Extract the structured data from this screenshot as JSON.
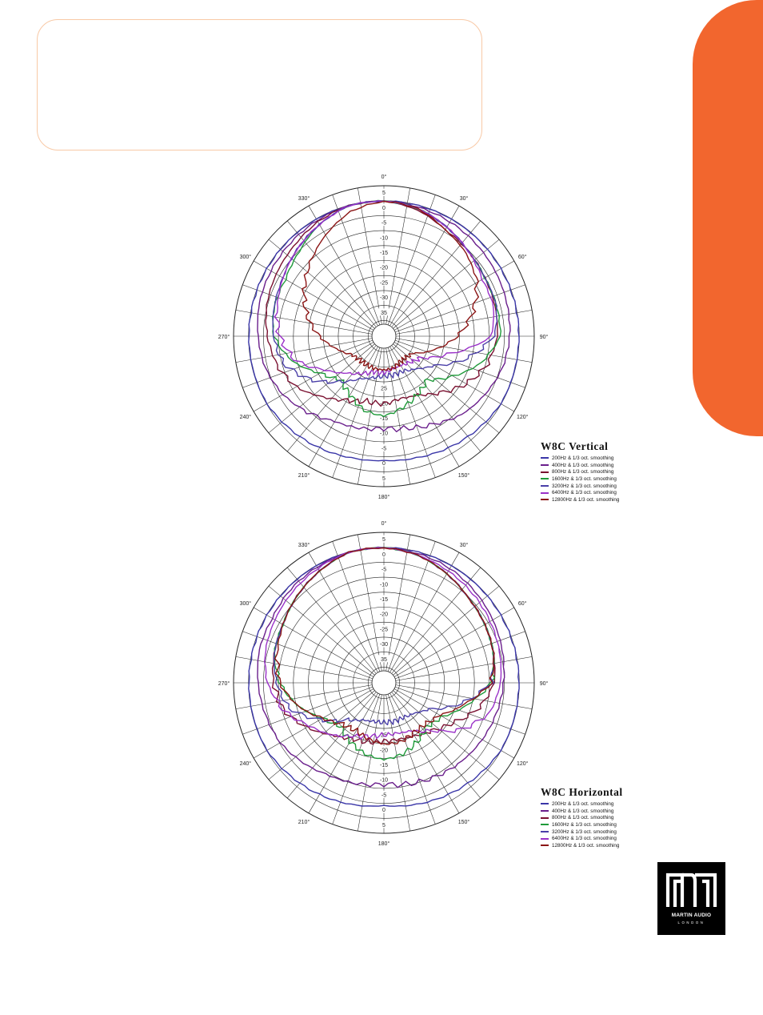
{
  "page": {
    "accent_color": "#f2662e",
    "box_border_color": "#f8c9a6"
  },
  "chart_data": [
    {
      "type": "polar-line",
      "title": "W8C Vertical",
      "angle_labels": [
        "0°",
        "30°",
        "60°",
        "90°",
        "120°",
        "150°",
        "180°",
        "210°",
        "240°",
        "270°",
        "300°",
        "330°"
      ],
      "radial_ticks": [
        "5",
        "0",
        "-5",
        "-10",
        "-15",
        "-20",
        "-25",
        "-30",
        "35"
      ],
      "lower_ticks": [
        "5",
        "0",
        "-5",
        "-10",
        "-15",
        "-20",
        "25"
      ],
      "rlim": [
        -40,
        5
      ],
      "grid": true,
      "legend_position": "bottom-right",
      "series": [
        {
          "name": "200Hz & 1/3 oct. smoothing",
          "color": "#3a36a8",
          "angles": [
            0,
            15,
            30,
            45,
            60,
            75,
            90,
            105,
            120,
            135,
            150,
            165,
            180,
            195,
            210,
            225,
            240,
            255,
            270,
            285,
            300,
            315,
            330,
            345
          ],
          "values": [
            0,
            0,
            0,
            0,
            0,
            0,
            0,
            0,
            0,
            -1,
            -2,
            -3,
            -3.5,
            -3,
            -2,
            -1,
            0,
            0,
            0,
            0,
            0,
            0,
            0,
            0
          ]
        },
        {
          "name": "400Hz & 1/3 oct. smoothing",
          "color": "#6a1f8c",
          "angles": [
            0,
            15,
            30,
            45,
            60,
            75,
            90,
            105,
            120,
            135,
            150,
            165,
            180,
            195,
            210,
            225,
            240,
            255,
            270,
            285,
            300,
            315,
            330,
            345
          ],
          "values": [
            0,
            -0.5,
            -1,
            -1.5,
            -2,
            -2.5,
            -3,
            -4,
            -6,
            -8,
            -11,
            -13,
            -14,
            -13,
            -12,
            -9,
            -6,
            -4,
            -3,
            -2,
            -1.5,
            -1,
            -0.5,
            0
          ]
        },
        {
          "name": "800Hz & 1/3 oct. smoothing",
          "color": "#7a1030",
          "angles": [
            0,
            15,
            30,
            45,
            60,
            75,
            90,
            105,
            120,
            135,
            150,
            165,
            180,
            195,
            210,
            225,
            240,
            255,
            270,
            285,
            300,
            315,
            330,
            345
          ],
          "values": [
            0,
            -1.5,
            -4,
            -5,
            -6,
            -6.5,
            -7,
            -9,
            -13,
            -18,
            -22,
            -23,
            -22,
            -22,
            -20,
            -16,
            -11,
            -8,
            -6,
            -4.5,
            -3.5,
            -2.5,
            -1,
            0
          ]
        },
        {
          "name": "1600Hz & 1/3 oct. smoothing",
          "color": "#1f9a3a",
          "angles": [
            0,
            15,
            30,
            45,
            60,
            75,
            90,
            105,
            120,
            135,
            150,
            165,
            180,
            195,
            210,
            225,
            240,
            255,
            270,
            285,
            300,
            315,
            330,
            345
          ],
          "values": [
            0,
            -1,
            -3,
            -5,
            -6,
            -6,
            -6,
            -11,
            -18,
            -24,
            -22,
            -20,
            -18,
            -19,
            -22,
            -24,
            -20,
            -13,
            -8,
            -7,
            -7,
            -5,
            -2,
            0
          ]
        },
        {
          "name": "3200Hz & 1/3 oct. smoothing",
          "color": "#4a3fa8",
          "angles": [
            0,
            15,
            30,
            45,
            60,
            75,
            90,
            105,
            120,
            135,
            150,
            165,
            180,
            195,
            210,
            225,
            240,
            255,
            270,
            285,
            300,
            315,
            330,
            345
          ],
          "values": [
            0,
            -1,
            -3,
            -5,
            -6,
            -6,
            -8,
            -16,
            -25,
            -29,
            -31,
            -31,
            -31,
            -30,
            -28,
            -23,
            -16,
            -10,
            -8,
            -7,
            -6,
            -4,
            -2,
            0
          ]
        },
        {
          "name": "6400Hz & 1/3 oct. smoothing",
          "color": "#9a32c8",
          "angles": [
            0,
            15,
            30,
            45,
            60,
            75,
            90,
            105,
            120,
            135,
            150,
            165,
            180,
            195,
            210,
            225,
            240,
            255,
            270,
            285,
            300,
            315,
            330,
            345
          ],
          "values": [
            0,
            -1,
            -3,
            -5,
            -7,
            -7,
            -9,
            -22,
            -30,
            -32,
            -33,
            -33,
            -32,
            -32,
            -30,
            -27,
            -22,
            -14,
            -10,
            -8,
            -6,
            -4,
            -2,
            0
          ]
        },
        {
          "name": "12800Hz & 1/3 oct. smoothing",
          "color": "#8b1515",
          "angles": [
            0,
            15,
            30,
            45,
            60,
            75,
            90,
            105,
            120,
            135,
            150,
            165,
            180,
            195,
            210,
            225,
            240,
            255,
            270,
            285,
            300,
            315,
            330,
            345
          ],
          "values": [
            0,
            -1,
            -4,
            -6,
            -9,
            -14,
            -20,
            -27,
            -33,
            -34,
            -34,
            -33,
            -33,
            -33,
            -33,
            -33,
            -32,
            -28,
            -23,
            -18,
            -14,
            -10,
            -6,
            -2
          ]
        }
      ]
    },
    {
      "type": "polar-line",
      "title": "W8C Horizontal",
      "angle_labels": [
        "0°",
        "30°",
        "60°",
        "90°",
        "120°",
        "150°",
        "180°",
        "210°",
        "240°",
        "270°",
        "300°",
        "330°"
      ],
      "radial_ticks": [
        "5",
        "0",
        "-5",
        "-10",
        "-15",
        "-20",
        "-25",
        "-30",
        "35"
      ],
      "lower_ticks": [
        "5",
        "0",
        "-5",
        "-10",
        "-15",
        "-20",
        "25"
      ],
      "rlim": [
        -40,
        5
      ],
      "grid": true,
      "legend_position": "bottom-right",
      "series": [
        {
          "name": "200Hz & 1/3 oct. smoothing",
          "color": "#3a36a8",
          "angles": [
            0,
            15,
            30,
            45,
            60,
            75,
            90,
            105,
            120,
            135,
            150,
            165,
            180,
            195,
            210,
            225,
            240,
            255,
            270,
            285,
            300,
            315,
            330,
            345
          ],
          "values": [
            0,
            0,
            0,
            0,
            0,
            0,
            0,
            0,
            0,
            -1,
            -2,
            -3,
            -4,
            -3,
            -2,
            -1,
            0,
            0,
            0,
            0,
            0,
            0,
            0,
            0
          ]
        },
        {
          "name": "400Hz & 1/3 oct. smoothing",
          "color": "#6a1f8c",
          "angles": [
            0,
            15,
            30,
            45,
            60,
            75,
            90,
            105,
            120,
            135,
            150,
            165,
            180,
            195,
            210,
            225,
            240,
            255,
            270,
            285,
            300,
            315,
            330,
            345
          ],
          "values": [
            0,
            -0.5,
            -1,
            -2,
            -3,
            -4,
            -5,
            -6,
            -7,
            -8,
            -9,
            -10,
            -11,
            -10,
            -9,
            -7,
            -5,
            -4,
            -3,
            -2,
            -2,
            -1,
            -0.5,
            0
          ]
        },
        {
          "name": "800Hz & 1/3 oct. smoothing",
          "color": "#7a1030",
          "angles": [
            0,
            15,
            30,
            45,
            60,
            75,
            90,
            105,
            120,
            135,
            150,
            165,
            180,
            195,
            210,
            225,
            240,
            255,
            270,
            285,
            300,
            315,
            330,
            345
          ],
          "values": [
            0,
            -1,
            -3,
            -5,
            -6,
            -7,
            -8,
            -12,
            -18,
            -22,
            -24,
            -25,
            -25,
            -24,
            -23,
            -20,
            -15,
            -10,
            -8,
            -7,
            -6,
            -4,
            -2,
            0
          ]
        },
        {
          "name": "1600Hz & 1/3 oct. smoothing",
          "color": "#1f9a3a",
          "angles": [
            0,
            15,
            30,
            45,
            60,
            75,
            90,
            105,
            120,
            135,
            150,
            165,
            180,
            195,
            210,
            225,
            240,
            255,
            270,
            285,
            300,
            315,
            330,
            345
          ],
          "values": [
            0,
            -1,
            -3,
            -5,
            -6,
            -7,
            -9,
            -16,
            -22,
            -24,
            -22,
            -20,
            -19,
            -20,
            -22,
            -24,
            -21,
            -15,
            -10,
            -7,
            -6,
            -4,
            -2,
            0
          ]
        },
        {
          "name": "3200Hz & 1/3 oct. smoothing",
          "color": "#4a3fa8",
          "angles": [
            0,
            15,
            30,
            45,
            60,
            75,
            90,
            105,
            120,
            135,
            150,
            165,
            180,
            195,
            210,
            225,
            240,
            255,
            270,
            285,
            300,
            315,
            330,
            345
          ],
          "values": [
            0,
            -1,
            -3,
            -5,
            -6,
            -7,
            -9,
            -18,
            -27,
            -30,
            -31,
            -31,
            -31,
            -31,
            -30,
            -27,
            -20,
            -12,
            -9,
            -7,
            -6,
            -4,
            -2,
            0
          ]
        },
        {
          "name": "6400Hz & 1/3 oct. smoothing",
          "color": "#9a32c8",
          "angles": [
            0,
            15,
            30,
            45,
            60,
            75,
            90,
            105,
            120,
            135,
            150,
            165,
            180,
            195,
            210,
            225,
            240,
            255,
            270,
            285,
            300,
            315,
            330,
            345
          ],
          "values": [
            0,
            -1,
            -2,
            -3,
            -4,
            -5,
            -6,
            -8,
            -14,
            -22,
            -26,
            -27,
            -27,
            -26,
            -24,
            -20,
            -16,
            -10,
            -6,
            -4,
            -3,
            -2,
            -1,
            0
          ]
        },
        {
          "name": "12800Hz & 1/3 oct. smoothing",
          "color": "#8b1515",
          "angles": [
            0,
            15,
            30,
            45,
            60,
            75,
            90,
            105,
            120,
            135,
            150,
            165,
            180,
            195,
            210,
            225,
            240,
            255,
            270,
            285,
            300,
            315,
            330,
            345
          ],
          "values": [
            0,
            -1,
            -3,
            -5,
            -6,
            -7,
            -9,
            -17,
            -23,
            -25,
            -25,
            -24,
            -24,
            -25,
            -26,
            -25,
            -21,
            -15,
            -10,
            -8,
            -6,
            -4,
            -2,
            0
          ]
        }
      ]
    }
  ],
  "logo": {
    "brand": "MARTIN AUDIO",
    "sub": "LONDON"
  }
}
